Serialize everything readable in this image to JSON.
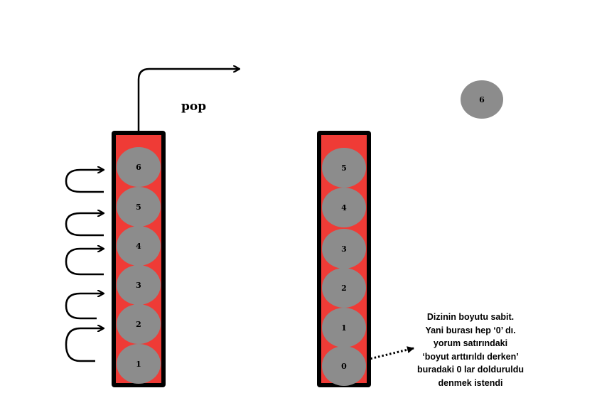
{
  "left_stack": {
    "items": [
      "6",
      "5",
      "4",
      "3",
      "2",
      "1"
    ]
  },
  "right_stack": {
    "items": [
      "5",
      "4",
      "3",
      "2",
      "1",
      "0"
    ]
  },
  "popped_item": "6",
  "pop_label": "pop",
  "note_lines": [
    "Dizinin boyutu sabit.",
    "Yani burası hep ‘0’ dı.",
    "yorum satırındaki",
    "‘boyut arttırıldı derken’",
    "buradaki 0 lar dolduruldu",
    "denmek istendi"
  ],
  "colors": {
    "stack_fill": "#ef3b36",
    "stack_border": "#000000",
    "ball": "#8c8c8c"
  }
}
